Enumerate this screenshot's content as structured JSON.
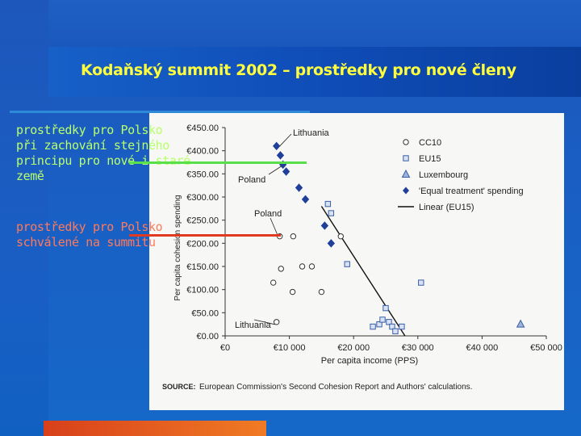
{
  "slide": {
    "title": "Kodaňský summit 2002 – prostředky pro nové členy",
    "note1": [
      "prostředky pro Polsko",
      "při zachování stejného",
      "principu pro nové i staré",
      "země"
    ],
    "note2": [
      "prostředky pro Polsko",
      "schválené na summitu"
    ],
    "colors": {
      "title": "#ffff3c",
      "note1": "#b8ff6a",
      "note2": "#ff7a5a",
      "green_line": "#58e04c",
      "red_line": "#e03a20"
    }
  },
  "chart_data": {
    "type": "scatter",
    "ylabel": "Per capita cohesion spending",
    "xlabel": "Per capita income (PPS)",
    "y_ticks": [
      "€0.00",
      "€50.00",
      "€100.00",
      "€150.00",
      "€200.00",
      "€250.00",
      "€300.00",
      "€350.00",
      "€400.00",
      "€450.00"
    ],
    "x_ticks": [
      "€0",
      "€10 000",
      "€20 000",
      "€30 000",
      "€40 000",
      "€50 000"
    ],
    "xlim": [
      0,
      50000
    ],
    "ylim": [
      0,
      450
    ],
    "source_label": "SOURCE:",
    "source_text": "European Commission's Second Cohesion Report and Authors' calculations.",
    "legend": [
      {
        "name": "CC10",
        "marker": "circle"
      },
      {
        "name": "EU15",
        "marker": "square"
      },
      {
        "name": "Luxembourg",
        "marker": "triangle"
      },
      {
        "name": "'Equal treatment' spending",
        "marker": "diamond"
      },
      {
        "name": "Linear (EU15)",
        "marker": "line"
      }
    ],
    "annotations": [
      "Lithuania",
      "Poland",
      "Poland",
      "Lithuania"
    ],
    "series": [
      {
        "name": "CC10",
        "points": [
          [
            8000,
            30
          ],
          [
            7500,
            115
          ],
          [
            8500,
            215
          ],
          [
            8700,
            145
          ],
          [
            10600,
            215
          ],
          [
            10500,
            95
          ],
          [
            12000,
            150
          ],
          [
            13500,
            150
          ],
          [
            15000,
            95
          ],
          [
            18000,
            215
          ]
        ]
      },
      {
        "name": "EU15",
        "points": [
          [
            19000,
            155
          ],
          [
            23000,
            20
          ],
          [
            24000,
            25
          ],
          [
            24500,
            35
          ],
          [
            25000,
            60
          ],
          [
            25500,
            30
          ],
          [
            26000,
            20
          ],
          [
            26500,
            10
          ],
          [
            27500,
            20
          ],
          [
            30500,
            115
          ],
          [
            16000,
            285
          ],
          [
            16500,
            265
          ]
        ]
      },
      {
        "name": "Luxembourg",
        "points": [
          [
            46000,
            25
          ]
        ]
      },
      {
        "name": "'Equal treatment' spending",
        "points": [
          [
            8000,
            410
          ],
          [
            8600,
            390
          ],
          [
            9000,
            370
          ],
          [
            9500,
            355
          ],
          [
            11500,
            320
          ],
          [
            12500,
            295
          ],
          [
            15500,
            238
          ],
          [
            16500,
            200
          ]
        ]
      },
      {
        "name": "Linear (EU15)",
        "line": [
          [
            15000,
            280
          ],
          [
            28000,
            0
          ]
        ]
      }
    ]
  }
}
